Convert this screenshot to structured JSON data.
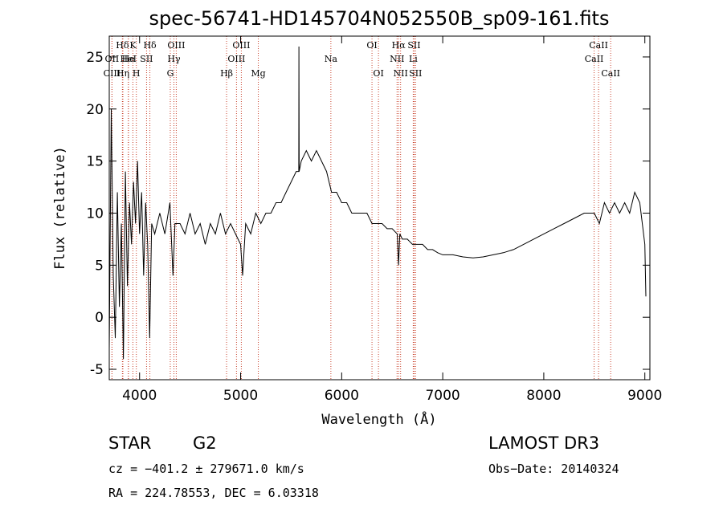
{
  "chart_data": {
    "type": "line",
    "title": "spec-56741-HD145704N052550B_sp09-161.fits",
    "xlabel": "Wavelength (Å)",
    "ylabel": "Flux (relative)",
    "xlim": [
      3700,
      9050
    ],
    "ylim": [
      -6,
      27
    ],
    "xticks": [
      4000,
      5000,
      6000,
      7000,
      8000,
      9000
    ],
    "yticks": [
      -5,
      0,
      5,
      10,
      15,
      20,
      25
    ],
    "series": [
      {
        "name": "flux",
        "x": [
          3700,
          3720,
          3740,
          3760,
          3780,
          3800,
          3820,
          3840,
          3860,
          3880,
          3900,
          3920,
          3940,
          3960,
          3980,
          4000,
          4020,
          4040,
          4060,
          4080,
          4100,
          4120,
          4150,
          4200,
          4250,
          4300,
          4330,
          4350,
          4400,
          4450,
          4500,
          4550,
          4600,
          4650,
          4700,
          4750,
          4800,
          4850,
          4900,
          4950,
          5000,
          5020,
          5050,
          5100,
          5150,
          5200,
          5250,
          5300,
          5350,
          5400,
          5450,
          5500,
          5550,
          5575,
          5577,
          5579,
          5600,
          5650,
          5700,
          5750,
          5800,
          5850,
          5900,
          5950,
          6000,
          6050,
          6100,
          6150,
          6200,
          6250,
          6300,
          6350,
          6400,
          6450,
          6500,
          6550,
          6563,
          6575,
          6600,
          6650,
          6700,
          6750,
          6800,
          6850,
          6900,
          6950,
          7000,
          7100,
          7200,
          7300,
          7400,
          7500,
          7600,
          7700,
          7800,
          7900,
          8000,
          8100,
          8200,
          8300,
          8400,
          8500,
          8550,
          8600,
          8650,
          8700,
          8750,
          8800,
          8850,
          8900,
          8950,
          9000,
          9010
        ],
        "y": [
          -3,
          20,
          4,
          -2,
          12,
          1,
          9,
          -4,
          14,
          3,
          11,
          7,
          13,
          9,
          15,
          8,
          12,
          4,
          11,
          7,
          -2,
          9,
          8,
          10,
          8,
          11,
          4,
          9,
          9,
          8,
          10,
          8,
          9,
          7,
          9,
          8,
          10,
          8,
          9,
          8,
          7,
          4,
          9,
          8,
          10,
          9,
          10,
          10,
          11,
          11,
          12,
          13,
          14,
          14,
          26,
          14,
          15,
          16,
          15,
          16,
          15,
          14,
          12,
          12,
          11,
          11,
          10,
          10,
          10,
          10,
          9,
          9,
          9,
          8.5,
          8.5,
          8,
          5,
          8,
          7.5,
          7.5,
          7,
          7,
          7,
          6.5,
          6.5,
          6.2,
          6,
          6,
          5.8,
          5.7,
          5.8,
          6,
          6.2,
          6.5,
          7,
          7.5,
          8,
          8.5,
          9,
          9.5,
          10,
          10,
          9,
          11,
          10,
          11,
          10,
          11,
          10,
          12,
          11,
          7,
          2
        ]
      }
    ],
    "lines_top": [
      {
        "label": "Hδ",
        "x": 3830
      },
      {
        "label": "K",
        "x": 3934
      },
      {
        "label": "Hδ",
        "x": 4102
      },
      {
        "label": "OIII",
        "x": 4363
      },
      {
        "label": "OIII",
        "x": 5007
      },
      {
        "label": "OI",
        "x": 6300
      },
      {
        "label": "Hα",
        "x": 6563
      },
      {
        "label": "SII",
        "x": 6717
      },
      {
        "label": "CaII",
        "x": 8542
      }
    ],
    "lines_mid": [
      {
        "label": "OII",
        "x": 3727
      },
      {
        "label": "He",
        "x": 3889
      },
      {
        "label": "HeI",
        "x": 3889
      },
      {
        "label": "SII",
        "x": 4069
      },
      {
        "label": "Hγ",
        "x": 4340
      },
      {
        "label": "OIII",
        "x": 4959
      },
      {
        "label": "Na",
        "x": 5893
      },
      {
        "label": "NII",
        "x": 6548
      },
      {
        "label": "Li",
        "x": 6708
      },
      {
        "label": "CaII",
        "x": 8498
      }
    ],
    "lines_low": [
      {
        "label": "CIII",
        "x": 3727
      },
      {
        "label": "Hη",
        "x": 3835
      },
      {
        "label": "H",
        "x": 3968
      },
      {
        "label": "G",
        "x": 4304
      },
      {
        "label": "Hβ",
        "x": 4861
      },
      {
        "label": "Mg",
        "x": 5175
      },
      {
        "label": "OI",
        "x": 6364
      },
      {
        "label": "NII",
        "x": 6583
      },
      {
        "label": "SII",
        "x": 6731
      },
      {
        "label": "CaII",
        "x": 8662
      }
    ]
  },
  "info": {
    "class": "STAR",
    "subclass": "G2",
    "survey": "LAMOST DR3",
    "cz": "cz = −401.2 ± 279671.0 km/s",
    "obsdate": "Obs−Date: 20140324",
    "radec": "RA = 224.78553, DEC =   6.03318"
  }
}
